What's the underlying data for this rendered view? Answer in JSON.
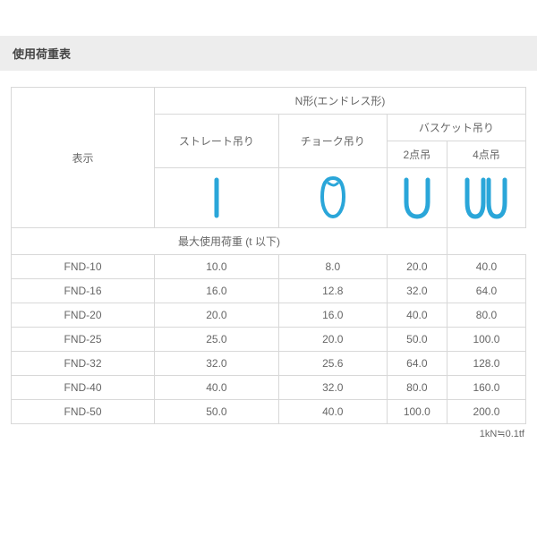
{
  "title": "使用荷重表",
  "group_header": "N形(エンドレス形)",
  "col_headers": {
    "display": "表示",
    "straight": "ストレート吊り",
    "choke": "チョーク吊り",
    "basket": "バスケット吊り",
    "basket_2pt": "2点吊",
    "basket_4pt": "4点吊",
    "max_load": "最大使用荷重 (t 以下)"
  },
  "rows": [
    {
      "name": "FND-10",
      "v": [
        "10.0",
        "8.0",
        "20.0",
        "40.0"
      ]
    },
    {
      "name": "FND-16",
      "v": [
        "16.0",
        "12.8",
        "32.0",
        "64.0"
      ]
    },
    {
      "name": "FND-20",
      "v": [
        "20.0",
        "16.0",
        "40.0",
        "80.0"
      ]
    },
    {
      "name": "FND-25",
      "v": [
        "25.0",
        "20.0",
        "50.0",
        "100.0"
      ]
    },
    {
      "name": "FND-32",
      "v": [
        "32.0",
        "25.6",
        "64.0",
        "128.0"
      ]
    },
    {
      "name": "FND-40",
      "v": [
        "40.0",
        "32.0",
        "80.0",
        "160.0"
      ]
    },
    {
      "name": "FND-50",
      "v": [
        "50.0",
        "40.0",
        "100.0",
        "200.0"
      ]
    }
  ],
  "footnote": "1kN≒0.1tf",
  "icon_stroke": "#2aa6d9",
  "icon_stroke_width": 5
}
